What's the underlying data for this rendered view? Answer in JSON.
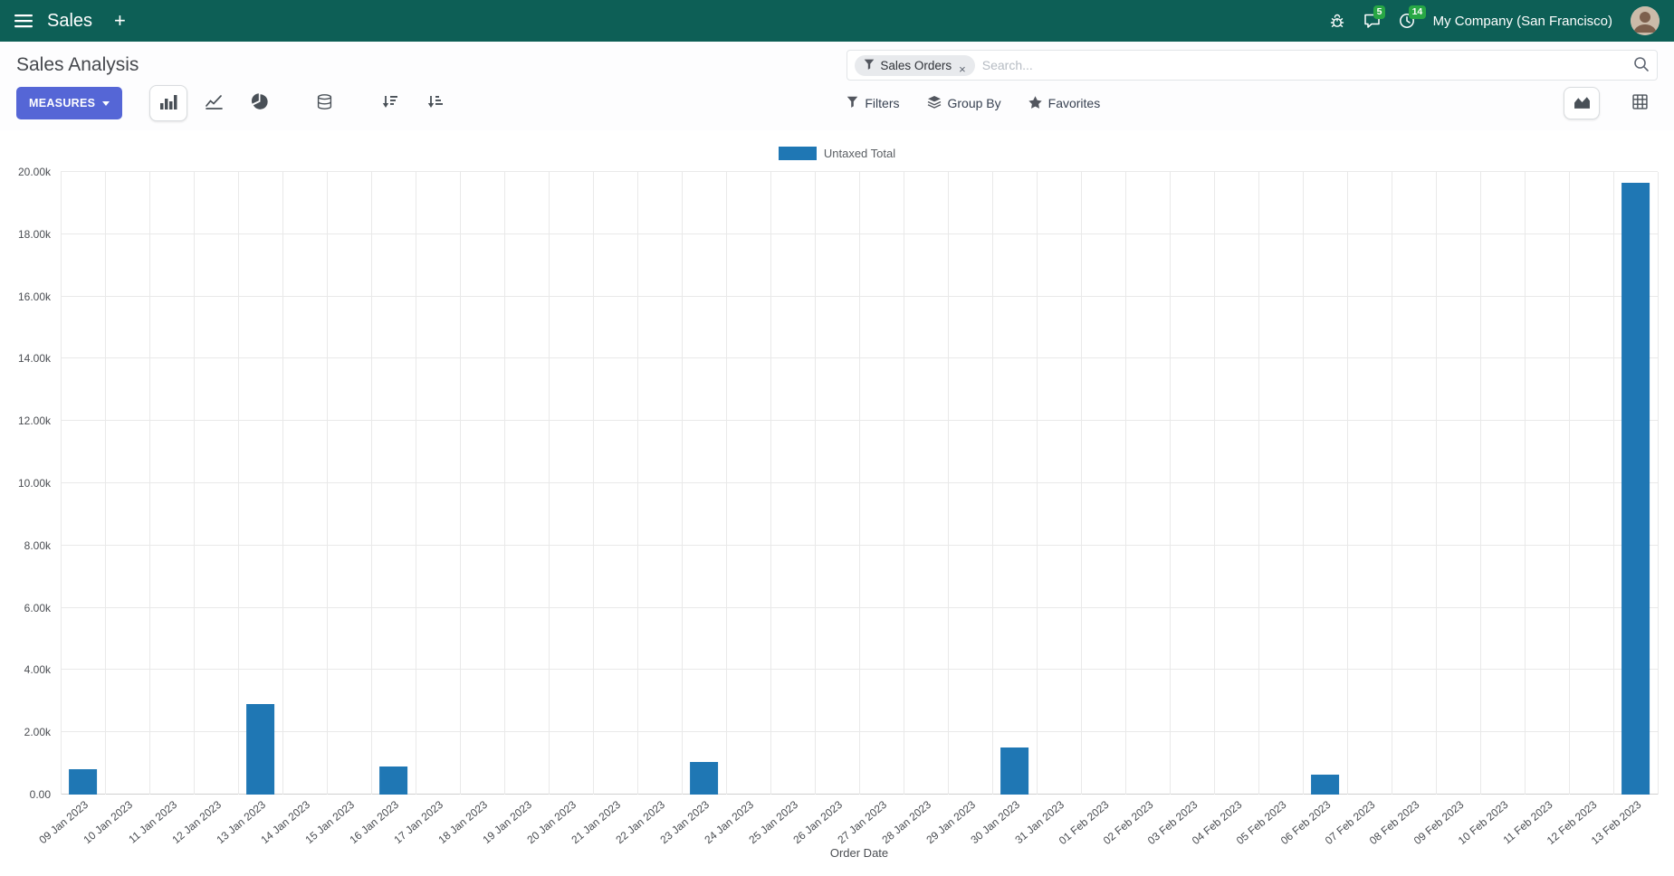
{
  "navbar": {
    "app_name": "Sales",
    "plus_label": "+",
    "messages_badge": "5",
    "activities_badge": "14",
    "company_name": "My Company (San Francisco)"
  },
  "control_panel": {
    "title": "Sales Analysis",
    "measures_label": "MEASURES",
    "search": {
      "facet_label": "Sales Orders",
      "facet_remove_label": "×",
      "placeholder": "Search..."
    },
    "filters_label": "Filters",
    "group_by_label": "Group By",
    "favorites_label": "Favorites"
  },
  "chart_data": {
    "type": "bar",
    "title": "",
    "legend": [
      "Untaxed Total"
    ],
    "legend_position": "top-center",
    "grid": true,
    "xlabel": "Order Date",
    "ylabel": "",
    "ylim": [
      0,
      20000
    ],
    "y_tick_labels": [
      "0.00",
      "2.00k",
      "4.00k",
      "6.00k",
      "8.00k",
      "10.00k",
      "12.00k",
      "14.00k",
      "16.00k",
      "18.00k",
      "20.00k"
    ],
    "bar_color": "#1f77b4",
    "categories": [
      "09 Jan 2023",
      "10 Jan 2023",
      "11 Jan 2023",
      "12 Jan 2023",
      "13 Jan 2023",
      "14 Jan 2023",
      "15 Jan 2023",
      "16 Jan 2023",
      "17 Jan 2023",
      "18 Jan 2023",
      "19 Jan 2023",
      "20 Jan 2023",
      "21 Jan 2023",
      "22 Jan 2023",
      "23 Jan 2023",
      "24 Jan 2023",
      "25 Jan 2023",
      "26 Jan 2023",
      "27 Jan 2023",
      "28 Jan 2023",
      "29 Jan 2023",
      "30 Jan 2023",
      "31 Jan 2023",
      "01 Feb 2023",
      "02 Feb 2023",
      "03 Feb 2023",
      "04 Feb 2023",
      "05 Feb 2023",
      "06 Feb 2023",
      "07 Feb 2023",
      "08 Feb 2023",
      "09 Feb 2023",
      "10 Feb 2023",
      "11 Feb 2023",
      "12 Feb 2023",
      "13 Feb 2023"
    ],
    "values": [
      800,
      0,
      0,
      0,
      2900,
      0,
      0,
      900,
      0,
      0,
      0,
      0,
      0,
      0,
      1050,
      0,
      0,
      0,
      0,
      0,
      0,
      1500,
      0,
      0,
      0,
      0,
      0,
      0,
      650,
      0,
      0,
      0,
      0,
      0,
      0,
      19650
    ]
  },
  "colors": {
    "navbar_bg": "#0d5f56",
    "primary_button": "#5566d6",
    "badge_green": "#28a745",
    "bar": "#1f77b4"
  }
}
